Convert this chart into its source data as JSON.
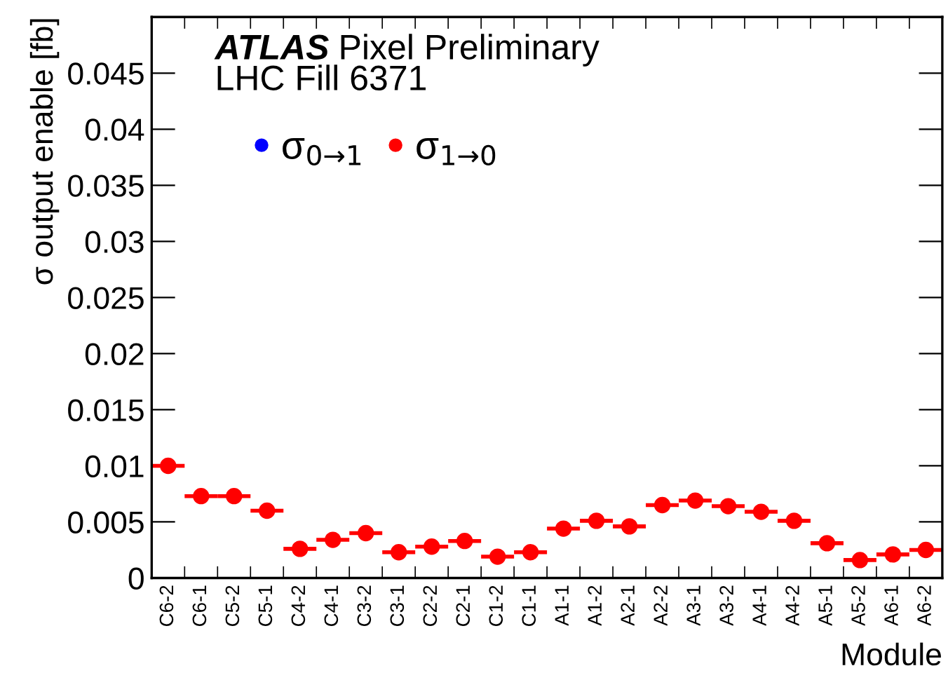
{
  "chart_data": {
    "type": "scatter",
    "annotations": [
      "ATLAS",
      "Pixel Preliminary",
      "LHC Fill 6371"
    ],
    "xlabel": "Module",
    "ylabel": "σ output enable [fb]",
    "categories": [
      "C6-2",
      "C6-1",
      "C5-2",
      "C5-1",
      "C4-2",
      "C4-1",
      "C3-2",
      "C3-1",
      "C2-2",
      "C2-1",
      "C1-2",
      "C1-1",
      "A1-1",
      "A1-2",
      "A2-1",
      "A2-2",
      "A3-1",
      "A3-2",
      "A4-1",
      "A4-2",
      "A5-1",
      "A5-2",
      "A6-1",
      "A6-2"
    ],
    "series": [
      {
        "name": "σ$_{0→1}$",
        "color": "#0000ff",
        "values": [
          null,
          null,
          null,
          null,
          null,
          null,
          null,
          null,
          null,
          null,
          null,
          null,
          null,
          null,
          null,
          null,
          null,
          null,
          null,
          null,
          null,
          null,
          null,
          null
        ]
      },
      {
        "name": "σ$_{1→0}$",
        "color": "#ff0000",
        "values": [
          0.01,
          0.0073,
          0.0073,
          0.006,
          0.0026,
          0.0034,
          0.004,
          0.0023,
          0.0028,
          0.0033,
          0.0019,
          0.0023,
          0.0044,
          0.0051,
          0.0046,
          0.0065,
          0.0069,
          0.0064,
          0.0059,
          0.0051,
          0.0031,
          0.0016,
          0.0021,
          0.0025
        ],
        "errors": [
          0.0004,
          null,
          null,
          null,
          null,
          null,
          null,
          null,
          null,
          null,
          null,
          null,
          null,
          null,
          null,
          null,
          0.0002,
          null,
          null,
          null,
          null,
          null,
          null,
          null
        ]
      }
    ],
    "ylim": [
      0,
      0.05
    ],
    "yticks": [
      0,
      0.005,
      0.01,
      0.015,
      0.02,
      0.025,
      0.03,
      0.035,
      0.04,
      0.045
    ],
    "marker": "circle",
    "legend": "top left",
    "grid": false
  }
}
